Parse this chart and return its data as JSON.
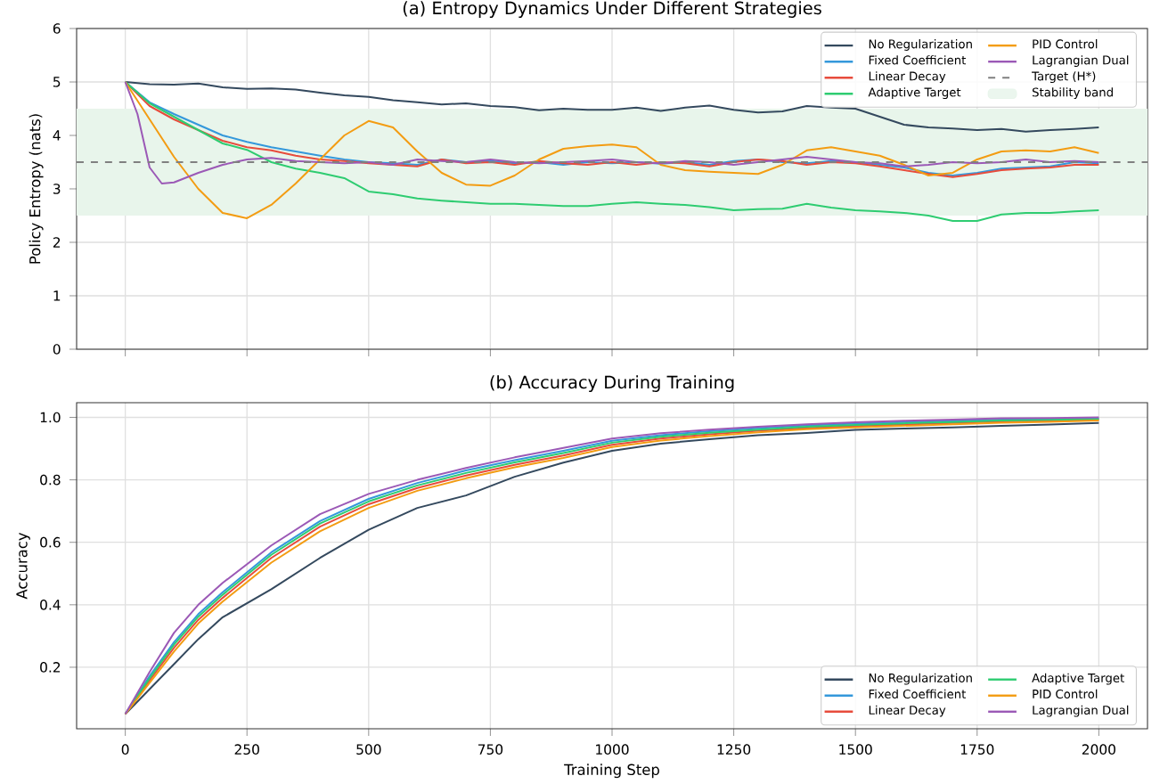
{
  "chart_data": [
    {
      "type": "line",
      "title": "(a) Entropy Dynamics Under Different Strategies",
      "ylabel": "Policy Entropy (nats)",
      "xlim": [
        -100,
        2100
      ],
      "ylim": [
        0,
        6
      ],
      "xticks": [
        0,
        250,
        500,
        750,
        1000,
        1250,
        1500,
        1750,
        2000
      ],
      "yticks": [
        0,
        1,
        2,
        3,
        4,
        5,
        6
      ],
      "grid": true,
      "legend": "top right",
      "tick_labels": "y",
      "x": [
        0,
        50,
        100,
        150,
        200,
        250,
        300,
        350,
        400,
        450,
        500,
        550,
        600,
        650,
        700,
        750,
        800,
        850,
        900,
        950,
        1000,
        1050,
        1100,
        1150,
        1200,
        1250,
        1300,
        1350,
        1400,
        1450,
        1500,
        1550,
        1600,
        1650,
        1700,
        1750,
        1800,
        1850,
        1900,
        1950,
        2000
      ],
      "series": [
        {
          "name": "No Regularization",
          "color": "#34495e",
          "values": [
            5.0,
            4.96,
            4.95,
            4.97,
            4.9,
            4.87,
            4.88,
            4.86,
            4.8,
            4.75,
            4.72,
            4.66,
            4.62,
            4.58,
            4.6,
            4.55,
            4.53,
            4.47,
            4.5,
            4.48,
            4.48,
            4.52,
            4.46,
            4.52,
            4.56,
            4.48,
            4.43,
            4.45,
            4.55,
            4.52,
            4.5,
            4.35,
            4.2,
            4.15,
            4.13,
            4.1,
            4.12,
            4.07,
            4.1,
            4.12,
            4.15
          ]
        },
        {
          "name": "Fixed Coefficient",
          "color": "#3498db",
          "values": [
            5.0,
            4.62,
            4.4,
            4.2,
            4.0,
            3.88,
            3.78,
            3.7,
            3.62,
            3.55,
            3.5,
            3.48,
            3.45,
            3.55,
            3.5,
            3.52,
            3.48,
            3.5,
            3.45,
            3.5,
            3.48,
            3.5,
            3.47,
            3.5,
            3.45,
            3.52,
            3.55,
            3.5,
            3.48,
            3.52,
            3.5,
            3.45,
            3.4,
            3.3,
            3.25,
            3.3,
            3.38,
            3.4,
            3.42,
            3.5,
            3.48
          ]
        },
        {
          "name": "Linear Decay",
          "color": "#e74c3c",
          "values": [
            5.0,
            4.55,
            4.3,
            4.1,
            3.9,
            3.78,
            3.72,
            3.62,
            3.55,
            3.52,
            3.48,
            3.45,
            3.42,
            3.55,
            3.48,
            3.5,
            3.45,
            3.52,
            3.48,
            3.45,
            3.5,
            3.45,
            3.5,
            3.48,
            3.42,
            3.5,
            3.55,
            3.52,
            3.45,
            3.5,
            3.48,
            3.42,
            3.35,
            3.28,
            3.22,
            3.28,
            3.35,
            3.38,
            3.4,
            3.45,
            3.45
          ]
        },
        {
          "name": "Adaptive Target",
          "color": "#2ecc71",
          "values": [
            5.0,
            4.6,
            4.35,
            4.1,
            3.85,
            3.73,
            3.5,
            3.38,
            3.3,
            3.2,
            2.95,
            2.9,
            2.82,
            2.78,
            2.75,
            2.72,
            2.72,
            2.7,
            2.68,
            2.68,
            2.72,
            2.75,
            2.72,
            2.7,
            2.66,
            2.6,
            2.62,
            2.63,
            2.72,
            2.65,
            2.6,
            2.58,
            2.55,
            2.5,
            2.4,
            2.4,
            2.52,
            2.55,
            2.55,
            2.58,
            2.6
          ]
        },
        {
          "name": "PID Control",
          "color": "#f39c12",
          "values": [
            5.0,
            4.3,
            3.6,
            3.0,
            2.55,
            2.45,
            2.7,
            3.1,
            3.55,
            4.0,
            4.27,
            4.15,
            3.7,
            3.3,
            3.08,
            3.06,
            3.25,
            3.55,
            3.75,
            3.8,
            3.83,
            3.78,
            3.45,
            3.35,
            3.32,
            3.3,
            3.28,
            3.45,
            3.72,
            3.78,
            3.7,
            3.62,
            3.45,
            3.25,
            3.3,
            3.55,
            3.7,
            3.72,
            3.7,
            3.78,
            3.67
          ]
        },
        {
          "name": "Lagrangian Dual",
          "color": "#9b59b6",
          "x": [
            0,
            25,
            50,
            75,
            100,
            150,
            200,
            250,
            300,
            350,
            400,
            450,
            500,
            550,
            600,
            650,
            700,
            750,
            800,
            850,
            900,
            950,
            1000,
            1050,
            1100,
            1150,
            1200,
            1250,
            1300,
            1350,
            1400,
            1450,
            1500,
            1550,
            1600,
            1650,
            1700,
            1750,
            1800,
            1850,
            1900,
            1950,
            2000
          ],
          "values": [
            5.0,
            4.4,
            3.4,
            3.1,
            3.12,
            3.3,
            3.45,
            3.55,
            3.58,
            3.52,
            3.5,
            3.48,
            3.5,
            3.45,
            3.55,
            3.52,
            3.5,
            3.55,
            3.5,
            3.48,
            3.5,
            3.52,
            3.55,
            3.5,
            3.48,
            3.52,
            3.5,
            3.45,
            3.5,
            3.55,
            3.6,
            3.55,
            3.5,
            3.48,
            3.42,
            3.45,
            3.5,
            3.48,
            3.5,
            3.55,
            3.5,
            3.52,
            3.5
          ]
        }
      ],
      "ref_lines": [
        {
          "axis": "y",
          "value": 3.5,
          "label": "Target (H*)",
          "color": "#808080",
          "line_style": "dashed"
        }
      ],
      "bands": [
        {
          "axis": "y",
          "from": 2.5,
          "to": 4.5,
          "label": "Stability band",
          "color": "#e8f5eb"
        }
      ]
    },
    {
      "type": "line",
      "title": "(b) Accuracy During Training",
      "xlabel": "Training Step",
      "ylabel": "Accuracy",
      "xlim": [
        -100,
        2100
      ],
      "ylim": [
        0.003,
        1.047
      ],
      "xticks": [
        0,
        250,
        500,
        750,
        1000,
        1250,
        1500,
        1750,
        2000
      ],
      "yticks": [
        0.2,
        0.4,
        0.6,
        0.8,
        {
          "value": 1.0,
          "label": "1.0"
        }
      ],
      "grid": true,
      "legend": "bottom right",
      "x": [
        0,
        50,
        100,
        150,
        200,
        300,
        400,
        500,
        600,
        700,
        800,
        900,
        1000,
        1100,
        1200,
        1300,
        1400,
        1500,
        1600,
        1700,
        1800,
        1900,
        2000
      ],
      "series": [
        {
          "name": "No Regularization",
          "color": "#34495e",
          "values": [
            0.05,
            0.13,
            0.21,
            0.29,
            0.36,
            0.45,
            0.55,
            0.64,
            0.71,
            0.75,
            0.81,
            0.855,
            0.893,
            0.916,
            0.93,
            0.943,
            0.95,
            0.96,
            0.964,
            0.968,
            0.973,
            0.977,
            0.982
          ]
        },
        {
          "name": "Fixed Coefficient",
          "color": "#3498db",
          "values": [
            0.05,
            0.172,
            0.28,
            0.37,
            0.44,
            0.568,
            0.668,
            0.739,
            0.79,
            0.83,
            0.863,
            0.893,
            0.925,
            0.943,
            0.956,
            0.966,
            0.974,
            0.98,
            0.985,
            0.989,
            0.993,
            0.995,
            0.997
          ]
        },
        {
          "name": "Linear Decay",
          "color": "#e74c3c",
          "values": [
            0.05,
            0.158,
            0.262,
            0.352,
            0.422,
            0.55,
            0.65,
            0.722,
            0.774,
            0.814,
            0.848,
            0.878,
            0.912,
            0.932,
            0.946,
            0.957,
            0.966,
            0.972,
            0.977,
            0.982,
            0.987,
            0.989,
            0.993
          ]
        },
        {
          "name": "Adaptive Target",
          "color": "#2ecc71",
          "values": [
            0.05,
            0.165,
            0.272,
            0.362,
            0.432,
            0.56,
            0.66,
            0.731,
            0.782,
            0.822,
            0.856,
            0.886,
            0.919,
            0.938,
            0.951,
            0.961,
            0.97,
            0.976,
            0.981,
            0.985,
            0.99,
            0.992,
            0.995
          ]
        },
        {
          "name": "PID Control",
          "color": "#f39c12",
          "values": [
            0.05,
            0.15,
            0.25,
            0.34,
            0.41,
            0.535,
            0.635,
            0.71,
            0.765,
            0.805,
            0.84,
            0.87,
            0.905,
            0.926,
            0.94,
            0.952,
            0.962,
            0.968,
            0.973,
            0.978,
            0.983,
            0.986,
            0.99
          ]
        },
        {
          "name": "Lagrangian Dual",
          "color": "#9b59b6",
          "values": [
            0.05,
            0.185,
            0.31,
            0.4,
            0.47,
            0.59,
            0.69,
            0.755,
            0.8,
            0.838,
            0.872,
            0.902,
            0.932,
            0.949,
            0.961,
            0.97,
            0.978,
            0.984,
            0.989,
            0.993,
            0.997,
            0.998,
            1.0
          ]
        }
      ]
    }
  ]
}
